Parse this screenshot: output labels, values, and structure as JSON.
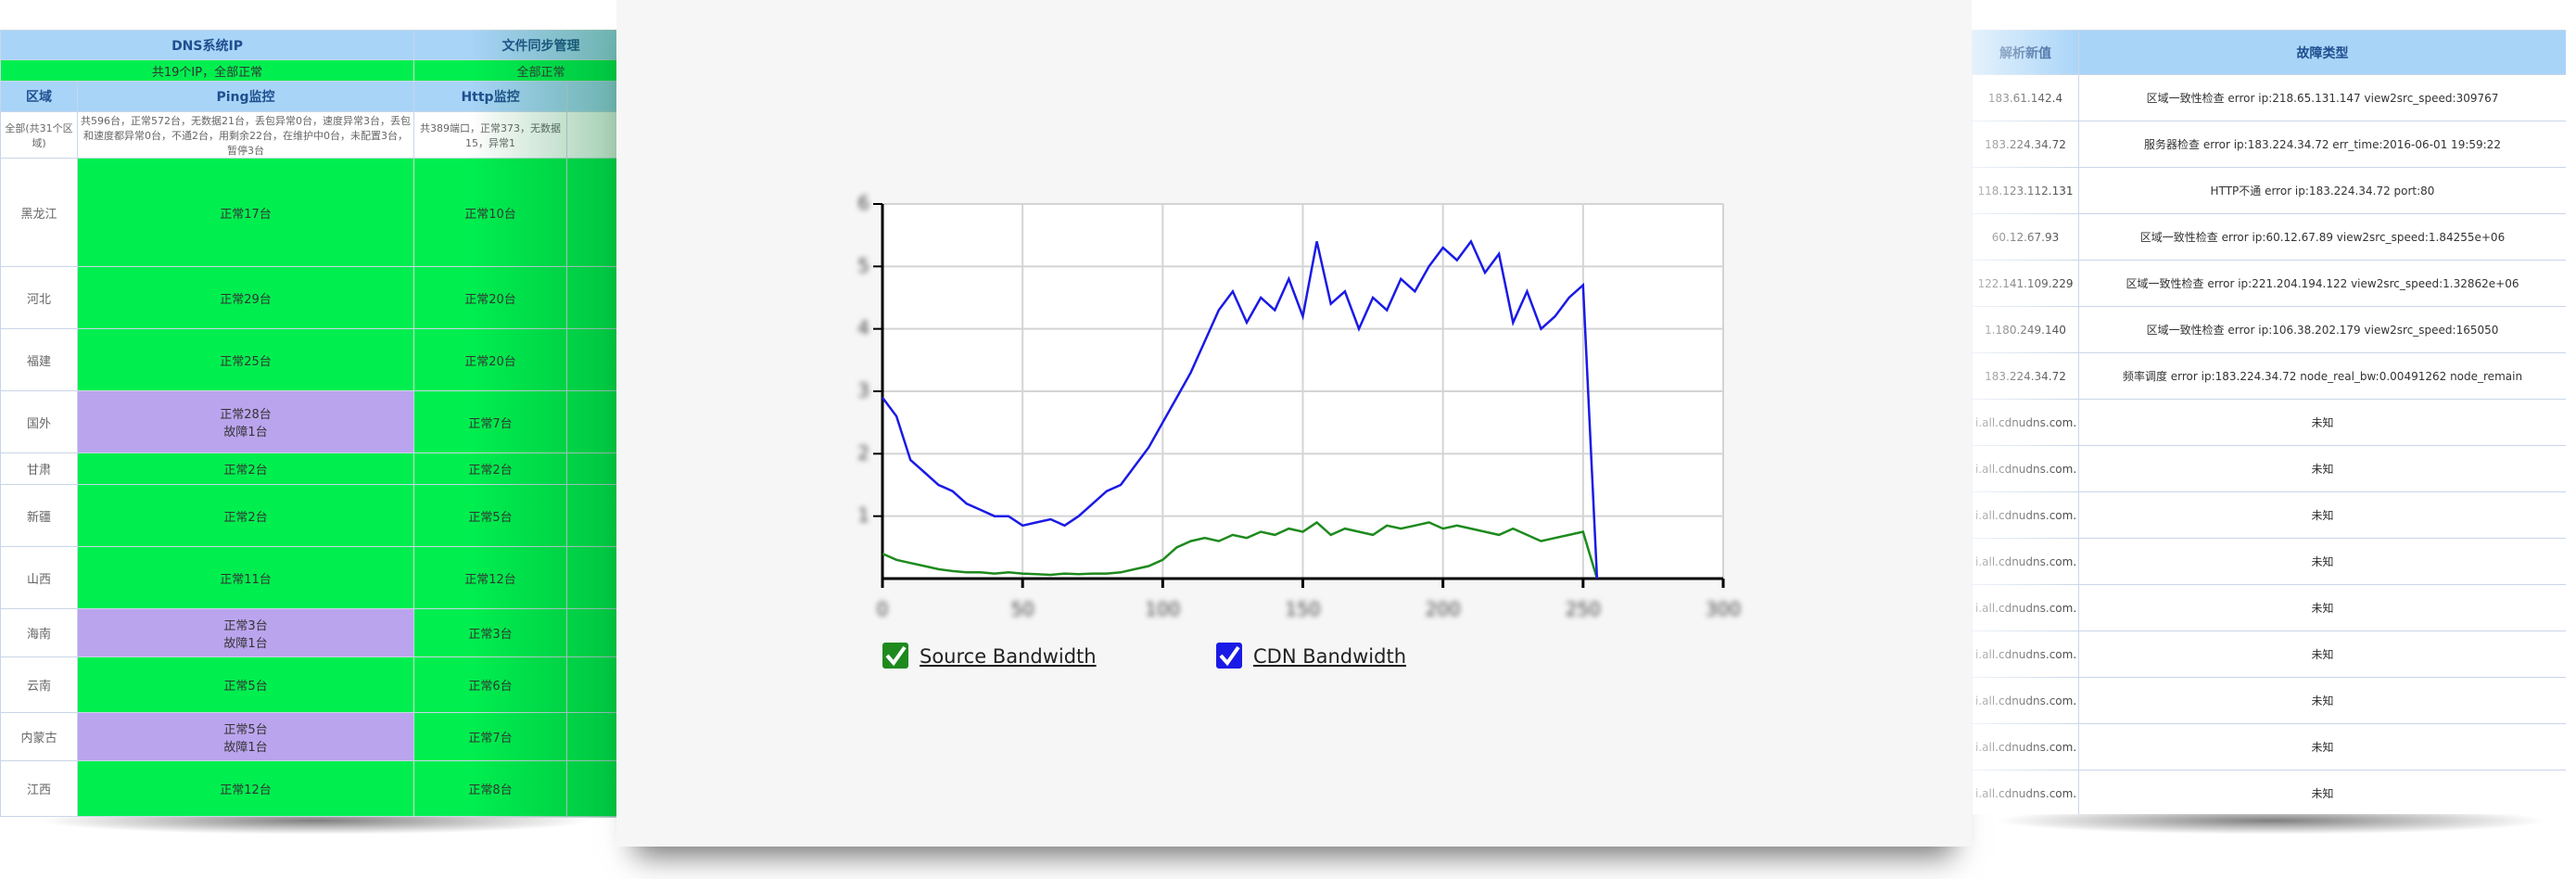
{
  "left_table": {
    "top_headers": [
      "DNS系统IP",
      "文件同步管理"
    ],
    "top_status": [
      "共19个IP，全部正常",
      "全部正常"
    ],
    "headers": [
      "区域",
      "Ping监控",
      "Http监控"
    ],
    "summary": [
      "全部(共31个区域)",
      "共596台，正常572台，无数据21台，丢包异常0台，速度异常3台，丢包和速度都异常0台，不通2台，用剩余22台，在维护中0台，未配置3台，暂停3台",
      "共389端口，正常373，无数据15，异常1"
    ],
    "rows": [
      {
        "region": "黑龙江",
        "ping": [
          "正常17台"
        ],
        "http": "正常10台",
        "color": "#00ef4f"
      },
      {
        "region": "河北",
        "ping": [
          "正常29台"
        ],
        "http": "正常20台",
        "color": "#00ef4f"
      },
      {
        "region": "福建",
        "ping": [
          "正常25台"
        ],
        "http": "正常20台",
        "color": "#00ef4f"
      },
      {
        "region": "国外",
        "ping": [
          "正常28台",
          "故障1台"
        ],
        "http": "正常7台",
        "color": "#bba4ee"
      },
      {
        "region": "甘肃",
        "ping": [
          "正常2台"
        ],
        "http": "正常2台",
        "color": "#00ef4f"
      },
      {
        "region": "新疆",
        "ping": [
          "正常2台"
        ],
        "http": "正常5台",
        "color": "#00ef4f"
      },
      {
        "region": "山西",
        "ping": [
          "正常11台"
        ],
        "http": "正常12台",
        "color": "#00ef4f"
      },
      {
        "region": "海南",
        "ping": [
          "正常3台",
          "故障1台"
        ],
        "http": "正常3台",
        "color": "#bba4ee"
      },
      {
        "region": "云南",
        "ping": [
          "正常5台"
        ],
        "http": "正常6台",
        "color": "#00ef4f"
      },
      {
        "region": "内蒙古",
        "ping": [
          "正常5台",
          "故障1台"
        ],
        "http": "正常7台",
        "color": "#bba4ee"
      },
      {
        "region": "江西",
        "ping": [
          "正常12台"
        ],
        "http": "正常8台",
        "color": "#00ef4f"
      }
    ]
  },
  "chart_data": {
    "type": "line",
    "x": [
      0,
      5,
      10,
      15,
      20,
      25,
      30,
      35,
      40,
      45,
      50,
      55,
      60,
      65,
      70,
      75,
      80,
      85,
      90,
      95,
      100,
      105,
      110,
      115,
      120,
      125,
      130,
      135,
      140,
      145,
      150,
      155,
      160,
      165,
      170,
      175,
      180,
      185,
      190,
      195,
      200,
      205,
      210,
      215,
      220,
      225,
      230,
      235,
      240,
      245,
      250,
      255
    ],
    "series": [
      {
        "name": "Source Bandwidth",
        "color": "#1e8a1e",
        "values": [
          0.4,
          0.3,
          0.25,
          0.2,
          0.15,
          0.12,
          0.1,
          0.1,
          0.08,
          0.1,
          0.08,
          0.07,
          0.06,
          0.08,
          0.07,
          0.08,
          0.08,
          0.1,
          0.15,
          0.2,
          0.3,
          0.5,
          0.6,
          0.65,
          0.6,
          0.7,
          0.65,
          0.75,
          0.7,
          0.8,
          0.75,
          0.9,
          0.7,
          0.8,
          0.75,
          0.7,
          0.85,
          0.8,
          0.85,
          0.9,
          0.8,
          0.85,
          0.8,
          0.75,
          0.7,
          0.8,
          0.7,
          0.6,
          0.65,
          0.7,
          0.75,
          0
        ]
      },
      {
        "name": "CDN Bandwidth",
        "color": "#1a1ae6",
        "values": [
          2.9,
          2.6,
          1.9,
          1.7,
          1.5,
          1.4,
          1.2,
          1.1,
          1.0,
          1.0,
          0.85,
          0.9,
          0.95,
          0.85,
          1.0,
          1.2,
          1.4,
          1.5,
          1.8,
          2.1,
          2.5,
          2.9,
          3.3,
          3.8,
          4.3,
          4.6,
          4.1,
          4.5,
          4.3,
          4.8,
          4.2,
          5.4,
          4.4,
          4.6,
          4.0,
          4.5,
          4.3,
          4.8,
          4.6,
          5.0,
          5.3,
          5.1,
          5.4,
          4.9,
          5.2,
          4.1,
          4.6,
          4.0,
          4.2,
          4.5,
          4.7,
          0
        ]
      }
    ],
    "xlim": [
      0,
      300
    ],
    "xticks": [
      0,
      50,
      100,
      150,
      200,
      250,
      300
    ],
    "ylim": [
      0,
      6
    ],
    "yticks": [
      1,
      2,
      3,
      4,
      5,
      6
    ],
    "grid": true
  },
  "right_table": {
    "headers": [
      "解析新值",
      "故障类型"
    ],
    "rows": [
      [
        "183.61.142.4",
        "区域一致性检查 error ip:218.65.131.147 view2src_speed:309767"
      ],
      [
        "183.224.34.72",
        "服务器检查 error ip:183.224.34.72 err_time:2016-06-01 19:59:22"
      ],
      [
        "118.123.112.131",
        "HTTP不通 error ip:183.224.34.72 port:80"
      ],
      [
        "60.12.67.93",
        "区域一致性检查 error ip:60.12.67.89 view2src_speed:1.84255e+06"
      ],
      [
        "122.141.109.229",
        "区域一致性检查 error ip:221.204.194.122 view2src_speed:1.32862e+06"
      ],
      [
        "1.180.249.140",
        "区域一致性检查 error ip:106.38.202.179 view2src_speed:165050"
      ],
      [
        "183.224.34.72",
        "频率调度 error ip:183.224.34.72 node_real_bw:0.00491262 node_remain"
      ],
      [
        "i.all.cdnudns.com.",
        "未知"
      ],
      [
        "i.all.cdnudns.com.",
        "未知"
      ],
      [
        "i.all.cdnudns.com.",
        "未知"
      ],
      [
        "i.all.cdnudns.com.",
        "未知"
      ],
      [
        "i.all.cdnudns.com.",
        "未知"
      ],
      [
        "i.all.cdnudns.com.",
        "未知"
      ],
      [
        "i.all.cdnudns.com.",
        "未知"
      ],
      [
        "i.all.cdnudns.com.",
        "未知"
      ],
      [
        "i.all.cdnudns.com.",
        "未知"
      ]
    ]
  }
}
